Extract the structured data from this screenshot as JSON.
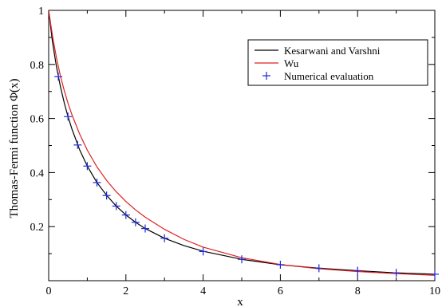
{
  "chart_data": {
    "type": "line",
    "xlabel": "x",
    "ylabel": "Thomas-Fermi function Φ(x)",
    "xlim": [
      0,
      10
    ],
    "ylim": [
      0,
      1
    ],
    "x_ticks": [
      0,
      2,
      4,
      6,
      8,
      10
    ],
    "y_ticks": [
      0.2,
      0.4,
      0.6,
      0.8,
      1
    ],
    "x_tick_labels": [
      "0",
      "2",
      "4",
      "6",
      "8",
      "10"
    ],
    "y_tick_labels": [
      "0.2",
      "0.4",
      "0.6",
      "0.8",
      "1"
    ],
    "grid": false,
    "legend_position": "top-right",
    "series": [
      {
        "name": "Kesarwani and Varshni",
        "style": "line",
        "color": "#000000",
        "x": [
          0,
          0.1,
          0.2,
          0.3,
          0.4,
          0.5,
          0.6,
          0.8,
          1.0,
          1.25,
          1.5,
          1.75,
          2.0,
          2.25,
          2.5,
          3.0,
          3.5,
          4.0,
          5.0,
          6.0,
          7.0,
          8.0,
          9.0,
          10.0
        ],
        "y": [
          1.0,
          0.882,
          0.793,
          0.721,
          0.66,
          0.607,
          0.562,
          0.485,
          0.424,
          0.363,
          0.316,
          0.276,
          0.243,
          0.216,
          0.193,
          0.157,
          0.13,
          0.109,
          0.079,
          0.059,
          0.046,
          0.037,
          0.029,
          0.024
        ]
      },
      {
        "name": "Wu",
        "style": "line",
        "color": "#e02020",
        "x": [
          0,
          0.1,
          0.2,
          0.3,
          0.4,
          0.5,
          0.6,
          0.8,
          1.0,
          1.25,
          1.5,
          1.75,
          2.0,
          2.25,
          2.5,
          3.0,
          3.5,
          4.0,
          5.0,
          6.0,
          7.0,
          8.0,
          9.0,
          10.0
        ],
        "y": [
          1.0,
          0.905,
          0.826,
          0.76,
          0.705,
          0.657,
          0.615,
          0.543,
          0.483,
          0.421,
          0.371,
          0.329,
          0.293,
          0.262,
          0.235,
          0.19,
          0.153,
          0.124,
          0.085,
          0.06,
          0.044,
          0.034,
          0.026,
          0.02
        ]
      },
      {
        "name": "Numerical evaluation",
        "style": "markers",
        "marker": "plus",
        "color": "#1a2ad6",
        "x": [
          0.25,
          0.5,
          0.75,
          1.0,
          1.25,
          1.5,
          1.75,
          2.0,
          2.25,
          2.5,
          3.0,
          4.0,
          5.0,
          6.0,
          7.0,
          8.0,
          9.0,
          10.0
        ],
        "y": [
          0.755,
          0.607,
          0.502,
          0.424,
          0.363,
          0.315,
          0.276,
          0.243,
          0.216,
          0.193,
          0.157,
          0.108,
          0.079,
          0.059,
          0.046,
          0.037,
          0.029,
          0.024
        ]
      }
    ]
  }
}
